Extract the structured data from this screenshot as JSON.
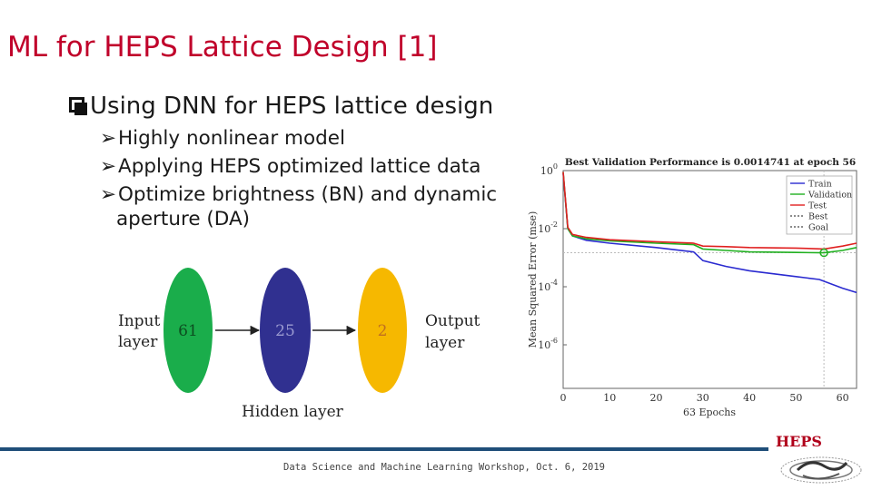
{
  "slide": {
    "title": "ML for HEPS Lattice Design [1]",
    "bullet_main": "Using DNN for HEPS lattice design",
    "sub_bullets": [
      "Highly nonlinear model",
      "Applying HEPS optimized lattice data",
      "Optimize brightness (BN) and dynamic",
      "aperture (DA)"
    ],
    "network": {
      "input_label_1": "Input",
      "input_label_2": "layer",
      "output_label_1": "Output",
      "output_label_2": "layer",
      "hidden_label": "Hidden layer",
      "nodes": [
        "61",
        "25",
        "2"
      ],
      "colors": [
        "#1aad4b",
        "#303090",
        "#f6b800"
      ]
    },
    "footer": "Data Science and Machine Learning Workshop, Oct. 6, 2019",
    "logo_text": "HEPS"
  },
  "chart_data": {
    "type": "line",
    "title": "Best Validation Performance is 0.0014741 at epoch 56",
    "xlabel": "63 Epochs",
    "ylabel": "Mean Squared Error (mse)",
    "xlim": [
      0,
      63
    ],
    "ylim_log10": [
      -7.5,
      0
    ],
    "x_ticks": [
      "0",
      "10",
      "20",
      "30",
      "40",
      "50",
      "60"
    ],
    "y_ticks": [
      {
        "base": "10",
        "exp": "0",
        "log": 0
      },
      {
        "base": "10",
        "exp": "-2",
        "log": -2
      },
      {
        "base": "10",
        "exp": "-4",
        "log": -4
      },
      {
        "base": "10",
        "exp": "-6",
        "log": -6
      }
    ],
    "legend_position": "top-right",
    "legend": [
      "Train",
      "Validation",
      "Test",
      "Best",
      "Goal"
    ],
    "series": [
      {
        "name": "Train",
        "color": "#2a2ad0",
        "x": [
          0,
          1,
          2,
          5,
          10,
          20,
          28,
          30,
          35,
          40,
          50,
          55,
          60,
          63
        ],
        "log_y": [
          -0.1,
          -2.0,
          -2.25,
          -2.4,
          -2.5,
          -2.65,
          -2.8,
          -3.1,
          -3.3,
          -3.45,
          -3.65,
          -3.75,
          -4.05,
          -4.2
        ]
      },
      {
        "name": "Validation",
        "color": "#20b020",
        "x": [
          0,
          1,
          2,
          5,
          10,
          20,
          28,
          30,
          35,
          40,
          50,
          56,
          60,
          63
        ],
        "log_y": [
          -0.05,
          -2.0,
          -2.25,
          -2.35,
          -2.42,
          -2.5,
          -2.55,
          -2.7,
          -2.75,
          -2.8,
          -2.82,
          -2.83,
          -2.75,
          -2.65
        ]
      },
      {
        "name": "Test",
        "color": "#e02020",
        "x": [
          0,
          1,
          2,
          5,
          10,
          20,
          28,
          30,
          35,
          40,
          50,
          56,
          60,
          63
        ],
        "log_y": [
          -0.05,
          -1.95,
          -2.2,
          -2.3,
          -2.38,
          -2.45,
          -2.5,
          -2.6,
          -2.62,
          -2.65,
          -2.67,
          -2.7,
          -2.6,
          -2.5
        ]
      }
    ],
    "best": {
      "x": 56,
      "log_y": -2.83
    }
  }
}
